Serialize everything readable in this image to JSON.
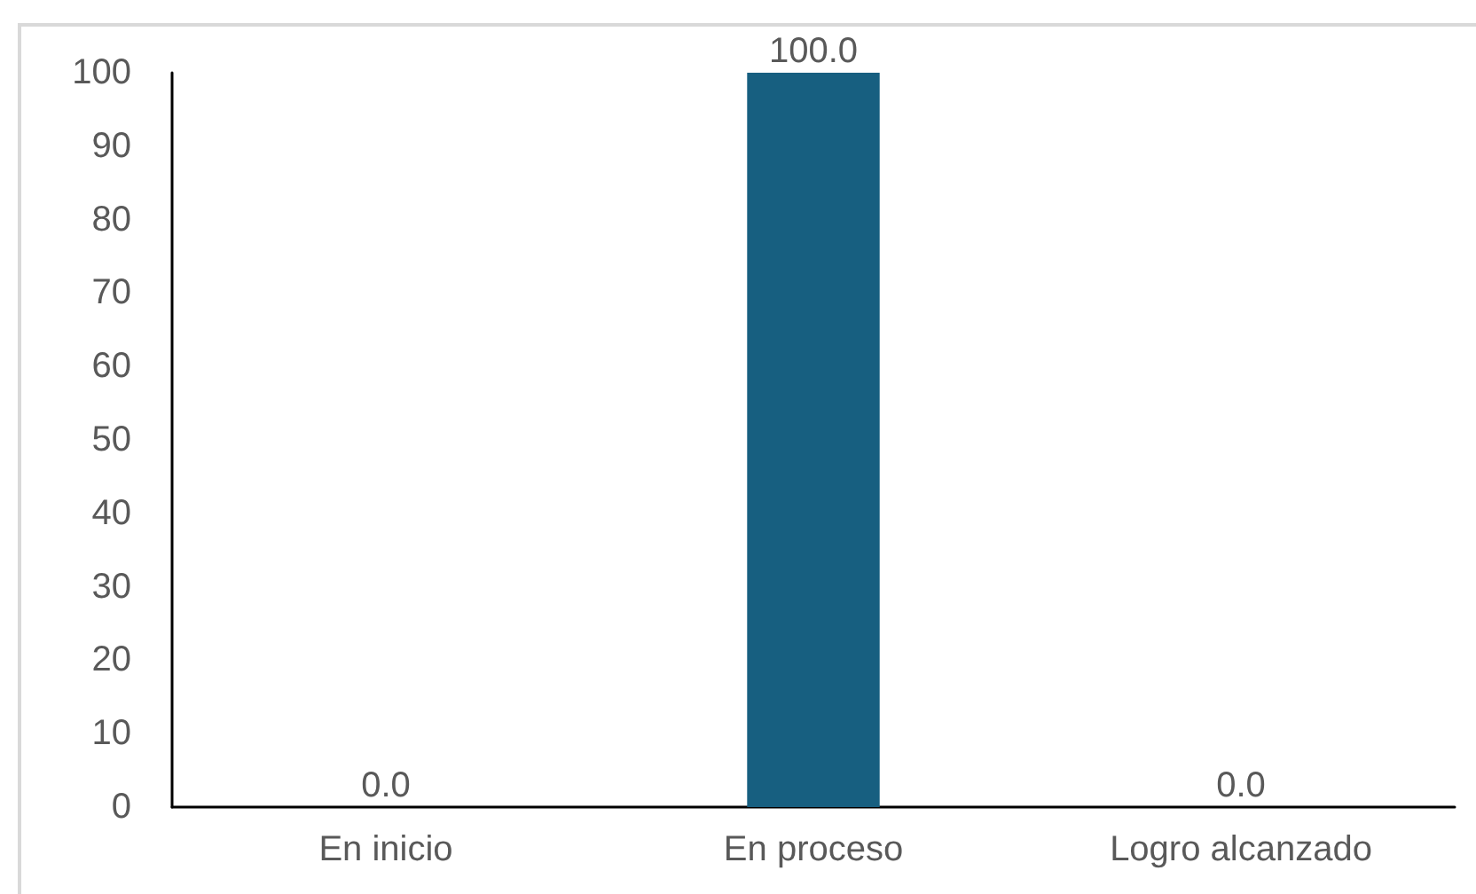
{
  "chart_data": {
    "type": "bar",
    "categories": [
      "En inicio",
      "En proceso",
      "Logro alcanzado"
    ],
    "values": [
      0,
      100,
      0
    ],
    "value_labels": [
      "0.0",
      "100.0",
      "0.0"
    ],
    "color": "#175f80",
    "ylim": [
      0,
      100
    ],
    "yticks": [
      0,
      10,
      20,
      30,
      40,
      50,
      60,
      70,
      80,
      90,
      100
    ],
    "grid": false
  }
}
